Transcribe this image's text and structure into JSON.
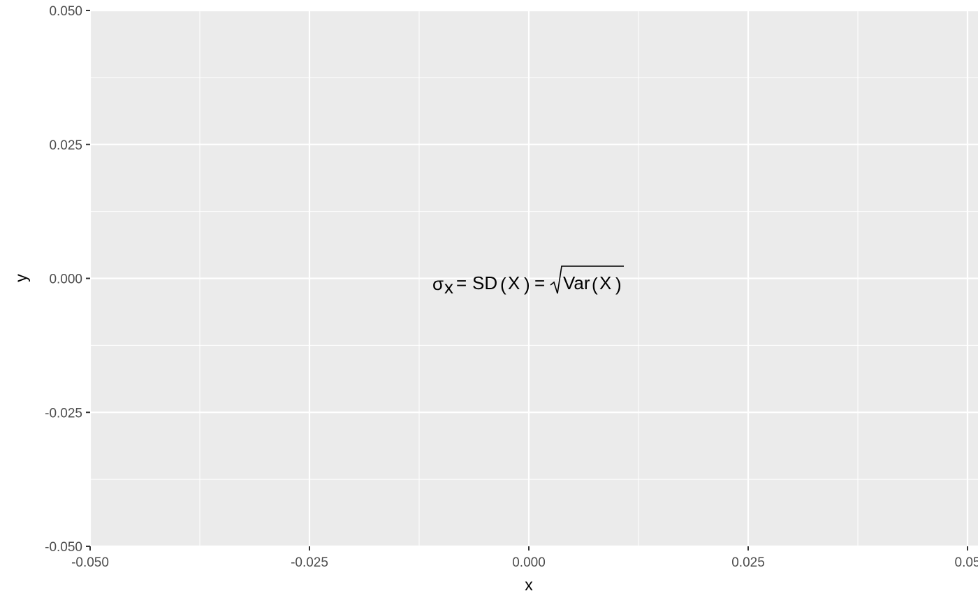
{
  "chart_data": {
    "type": "scatter",
    "title": "",
    "xlabel": "x",
    "ylabel": "y",
    "xlim": [
      -0.05,
      0.05
    ],
    "ylim": [
      -0.05,
      0.05
    ],
    "x_ticks": [
      -0.05,
      -0.025,
      0,
      0.025,
      0.05
    ],
    "y_ticks": [
      -0.05,
      -0.025,
      0,
      0.025,
      0.05
    ],
    "x_tick_labels": [
      "-0.050",
      "-0.025",
      "0.000",
      "0.025",
      "0.05"
    ],
    "y_tick_labels": [
      "-0.050",
      "-0.025",
      "0.000",
      "0.025",
      "0.050"
    ],
    "grid": true,
    "panel_color": "#ebebeb",
    "grid_color": "#ffffff",
    "annotations": [
      {
        "x": 0,
        "y": 0,
        "parts": {
          "sigma": "σ",
          "sub": "x",
          "eq1": "=",
          "sd": "SD",
          "lp1": "(",
          "X1": "X",
          "rp1": ")",
          "eq2": "=",
          "var": "Var",
          "lp2": "(",
          "X2": "X",
          "rp2": ")"
        }
      }
    ]
  }
}
